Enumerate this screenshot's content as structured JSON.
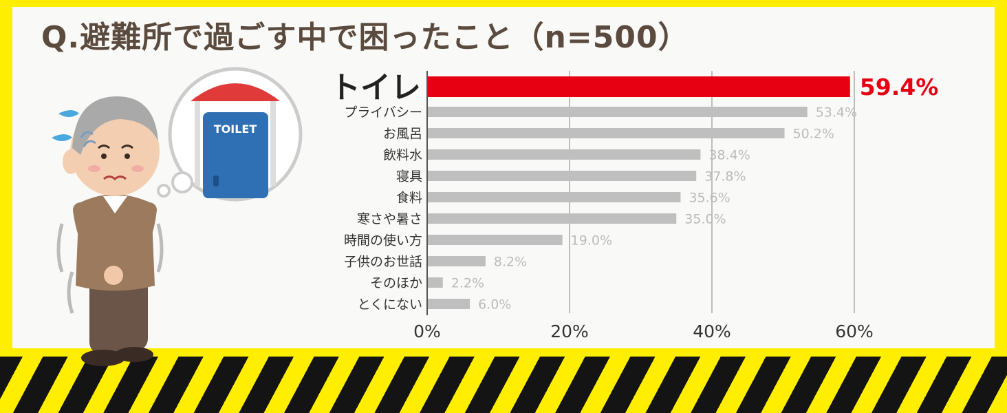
{
  "title": "Q.避難所で過ごす中で困ったこと（n=500）",
  "illustration": {
    "description_icon": "elderly-man-needing-toilet-icon",
    "sign_text": "TOILET"
  },
  "colors": {
    "background": "#ffee00",
    "panel": "#f9f9f7",
    "highlight_bar": "#e60012",
    "bar": "#bfbfbf",
    "grid": "#bdbdbd",
    "title": "#5b4a3e"
  },
  "chart_data": {
    "type": "bar",
    "orientation": "horizontal",
    "categories": [
      "トイレ",
      "プライバシー",
      "お風呂",
      "飲料水",
      "寝具",
      "食料",
      "寒さや暑さ",
      "時間の使い方",
      "子供のお世話",
      "そのほか",
      "とくにない"
    ],
    "values": [
      59.4,
      53.4,
      50.2,
      38.4,
      37.8,
      35.6,
      35.0,
      19.0,
      8.2,
      2.2,
      6.0
    ],
    "value_labels": [
      "59.4%",
      "53.4%",
      "50.2%",
      "38.4%",
      "37.8%",
      "35.6%",
      "35.0%",
      "19.0%",
      "8.2%",
      "2.2%",
      "6.0%"
    ],
    "highlight_index": 0,
    "xlim": [
      0,
      60
    ],
    "ticks": [
      0,
      20,
      40,
      60
    ],
    "tick_labels": [
      "0%",
      "20%",
      "40%",
      "60%"
    ],
    "grid": true
  }
}
